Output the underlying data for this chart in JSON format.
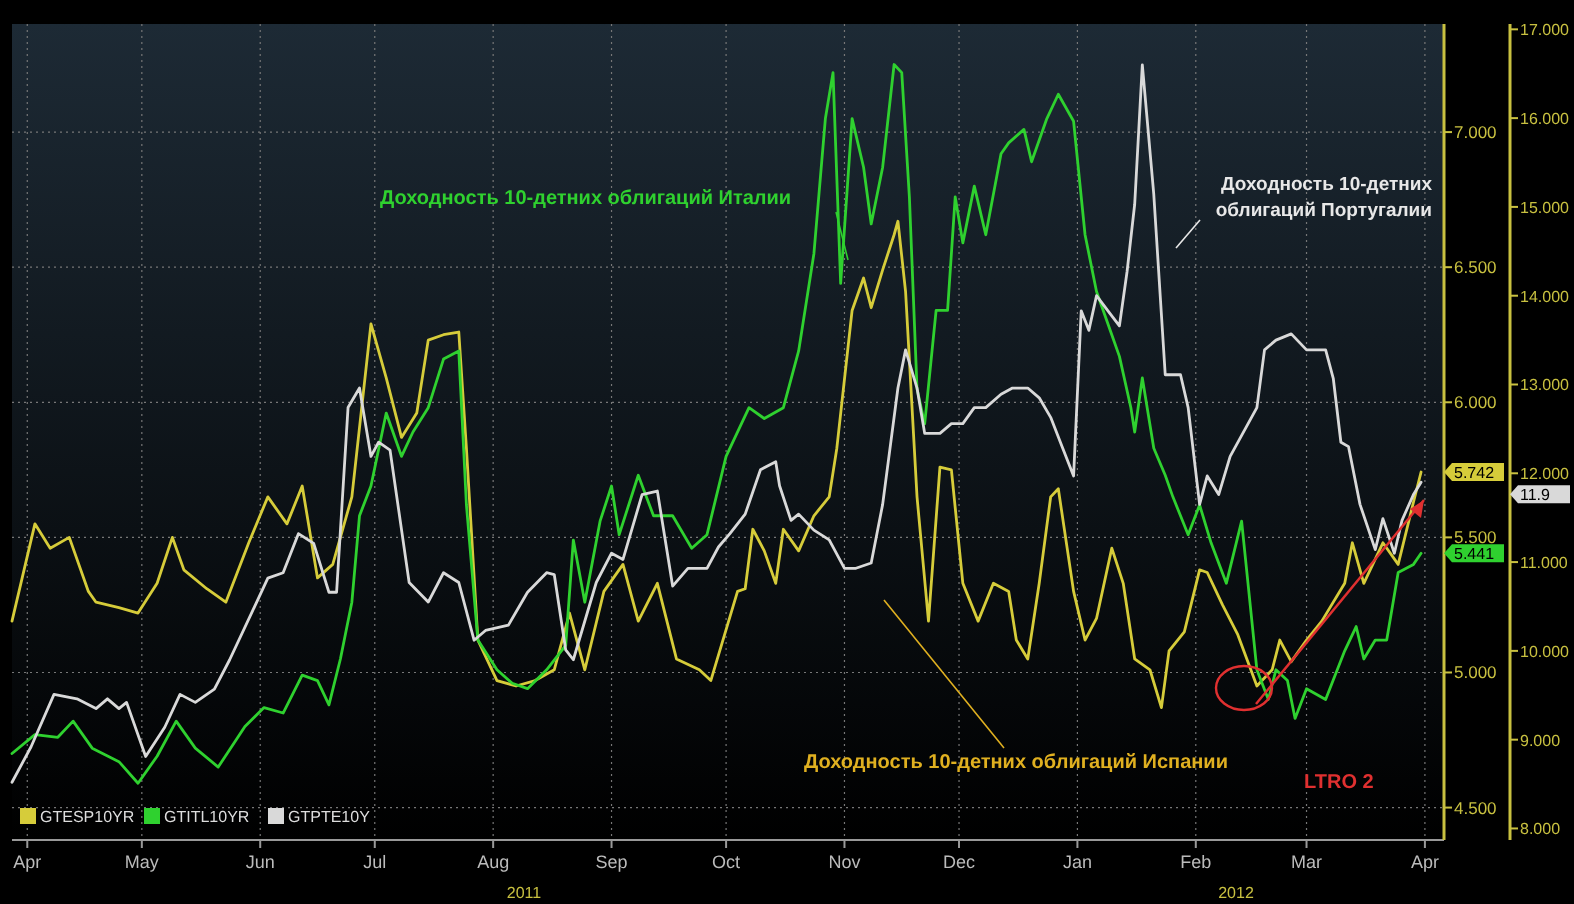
{
  "chart_data": {
    "type": "line",
    "xlim": [
      "2011-04-11",
      "2012-04-20"
    ],
    "xticks": [
      {
        "value": "2011-04-15",
        "label": "Apr"
      },
      {
        "value": "2011-05-15",
        "label": "May"
      },
      {
        "value": "2011-06-15",
        "label": "Jun"
      },
      {
        "value": "2011-07-15",
        "label": "Jul"
      },
      {
        "value": "2011-08-15",
        "label": "Aug"
      },
      {
        "value": "2011-09-15",
        "label": "Sep"
      },
      {
        "value": "2011-10-15",
        "label": "Oct"
      },
      {
        "value": "2011-11-15",
        "label": "Nov"
      },
      {
        "value": "2011-12-15",
        "label": "Dec"
      },
      {
        "value": "2012-01-15",
        "label": "Jan"
      },
      {
        "value": "2012-02-15",
        "label": "Feb"
      },
      {
        "value": "2012-03-15",
        "label": "Mar"
      },
      {
        "value": "2012-04-15",
        "label": "Apr"
      }
    ],
    "ylim": [
      4.38,
      7.4
    ],
    "yticks": [
      {
        "value": 4.5,
        "label": "4.500"
      },
      {
        "value": 5,
        "label": "5.000"
      },
      {
        "value": 5.5,
        "label": "5.500"
      },
      {
        "value": 6,
        "label": "6.000"
      },
      {
        "value": 6.5,
        "label": "6.500"
      },
      {
        "value": 7,
        "label": "7.000"
      }
    ],
    "y2lim": [
      7.87,
      17.06
    ],
    "y2ticks": [
      {
        "value": 8,
        "label": "8.000"
      },
      {
        "value": 9,
        "label": "9.000"
      },
      {
        "value": 10,
        "label": "10.000"
      },
      {
        "value": 11,
        "label": "11.000"
      },
      {
        "value": 12,
        "label": "12.000"
      },
      {
        "value": 13,
        "label": "13.000"
      },
      {
        "value": 14,
        "label": "14.000"
      },
      {
        "value": 15,
        "label": "15.000"
      },
      {
        "value": 16,
        "label": "16.000"
      },
      {
        "value": 17,
        "label": "17.000"
      }
    ],
    "grid": true,
    "legend": "bottom left",
    "line_style": "solid",
    "series": [
      {
        "name": "GTESP10YR",
        "color": "#d6cc3a",
        "x": [
          "2011-04-11",
          "2011-04-17",
          "2011-04-21",
          "2011-04-26",
          "2011-05-01",
          "2011-05-03",
          "2011-05-09",
          "2011-05-14",
          "2011-05-19",
          "2011-05-23",
          "2011-05-26",
          "2011-06-01",
          "2011-06-06",
          "2011-06-12",
          "2011-06-17",
          "2011-06-22",
          "2011-06-26",
          "2011-06-30",
          "2011-07-04",
          "2011-07-09",
          "2011-07-14",
          "2011-07-18",
          "2011-07-22",
          "2011-07-26",
          "2011-07-29",
          "2011-08-02",
          "2011-08-06",
          "2011-08-08",
          "2011-08-11",
          "2011-08-16",
          "2011-08-21",
          "2011-08-26",
          "2011-08-31",
          "2011-09-04",
          "2011-09-08",
          "2011-09-13",
          "2011-09-18",
          "2011-09-22",
          "2011-09-27",
          "2011-10-02",
          "2011-10-08",
          "2011-10-11",
          "2011-10-18",
          "2011-10-20",
          "2011-10-22",
          "2011-10-25",
          "2011-10-28",
          "2011-10-30",
          "2011-11-03",
          "2011-11-07",
          "2011-11-11",
          "2011-11-13",
          "2011-11-17",
          "2011-11-20",
          "2011-11-22",
          "2011-11-25",
          "2011-11-28",
          "2011-11-29",
          "2011-12-01",
          "2011-12-04",
          "2011-12-07",
          "2011-12-10",
          "2011-12-13",
          "2011-12-16",
          "2011-12-20",
          "2011-12-24",
          "2011-12-28",
          "2011-12-30",
          "2012-01-02",
          "2012-01-05",
          "2012-01-08",
          "2012-01-10",
          "2012-01-14",
          "2012-01-17",
          "2012-01-20",
          "2012-01-24",
          "2012-01-27",
          "2012-01-30",
          "2012-02-03",
          "2012-02-06",
          "2012-02-08",
          "2012-02-12",
          "2012-02-16",
          "2012-02-18",
          "2012-02-22",
          "2012-02-26",
          "2012-03-02",
          "2012-03-06",
          "2012-03-08",
          "2012-03-11",
          "2012-03-15",
          "2012-03-19",
          "2012-03-25",
          "2012-03-27",
          "2012-03-30",
          "2012-04-04",
          "2012-04-08",
          "2012-04-12",
          "2012-04-14"
        ],
        "values": [
          5.19,
          5.55,
          5.46,
          5.5,
          5.3,
          5.26,
          5.24,
          5.22,
          5.33,
          5.5,
          5.38,
          5.31,
          5.26,
          5.48,
          5.65,
          5.55,
          5.69,
          5.35,
          5.4,
          5.65,
          6.29,
          6.09,
          5.87,
          5.96,
          6.23,
          6.25,
          6.26,
          5.83,
          5.12,
          4.97,
          4.95,
          4.97,
          5.01,
          5.22,
          5.01,
          5.3,
          5.4,
          5.19,
          5.33,
          5.05,
          5.01,
          4.97,
          5.3,
          5.31,
          5.53,
          5.45,
          5.33,
          5.53,
          5.45,
          5.58,
          5.65,
          5.83,
          6.34,
          6.46,
          6.35,
          6.49,
          6.62,
          6.67,
          6.41,
          5.65,
          5.19,
          5.76,
          5.75,
          5.33,
          5.19,
          5.33,
          5.3,
          5.12,
          5.05,
          5.33,
          5.65,
          5.68,
          5.3,
          5.12,
          5.2,
          5.46,
          5.33,
          5.05,
          5.01,
          4.87,
          5.08,
          5.15,
          5.38,
          5.37,
          5.25,
          5.14,
          4.95,
          5.01,
          5.12,
          5.04,
          5.12,
          5.19,
          5.33,
          5.48,
          5.33,
          5.48,
          5.4,
          5.63,
          5.742
        ]
      },
      {
        "name": "GTITL10YR",
        "color": "#2fd12f",
        "x": [
          "2011-04-11",
          "2011-04-17",
          "2011-04-23",
          "2011-04-27",
          "2011-05-02",
          "2011-05-09",
          "2011-05-14",
          "2011-05-19",
          "2011-05-24",
          "2011-05-29",
          "2011-06-04",
          "2011-06-11",
          "2011-06-16",
          "2011-06-21",
          "2011-06-26",
          "2011-06-30",
          "2011-07-03",
          "2011-07-06",
          "2011-07-09",
          "2011-07-11",
          "2011-07-14",
          "2011-07-18",
          "2011-07-22",
          "2011-07-25",
          "2011-07-29",
          "2011-08-02",
          "2011-08-06",
          "2011-08-08",
          "2011-08-11",
          "2011-08-16",
          "2011-08-20",
          "2011-08-24",
          "2011-08-29",
          "2011-09-03",
          "2011-09-05",
          "2011-09-08",
          "2011-09-12",
          "2011-09-15",
          "2011-09-17",
          "2011-09-22",
          "2011-09-26",
          "2011-10-01",
          "2011-10-06",
          "2011-10-10",
          "2011-10-15",
          "2011-10-21",
          "2011-10-25",
          "2011-10-30",
          "2011-11-03",
          "2011-11-07",
          "2011-11-10",
          "2011-11-12",
          "2011-11-14",
          "2011-11-17",
          "2011-11-20",
          "2011-11-22",
          "2011-11-25",
          "2011-11-28",
          "2011-11-30",
          "2011-12-02",
          "2011-12-04",
          "2011-12-06",
          "2011-12-09",
          "2011-12-12",
          "2011-12-14",
          "2011-12-16",
          "2011-12-19",
          "2011-12-22",
          "2011-12-26",
          "2011-12-28",
          "2012-01-01",
          "2012-01-03",
          "2012-01-07",
          "2012-01-10",
          "2012-01-14",
          "2012-01-17",
          "2012-01-20",
          "2012-01-24",
          "2012-01-26",
          "2012-01-29",
          "2012-01-30",
          "2012-02-01",
          "2012-02-04",
          "2012-02-07",
          "2012-02-09",
          "2012-02-13",
          "2012-02-16",
          "2012-02-19",
          "2012-02-23",
          "2012-02-27",
          "2012-03-02",
          "2012-03-05",
          "2012-03-07",
          "2012-03-10",
          "2012-03-12",
          "2012-03-15",
          "2012-03-20",
          "2012-03-25",
          "2012-03-28",
          "2012-03-30",
          "2012-04-02",
          "2012-04-05",
          "2012-04-08",
          "2012-04-12",
          "2012-04-14"
        ],
        "values": [
          4.7,
          4.77,
          4.76,
          4.82,
          4.72,
          4.67,
          4.59,
          4.69,
          4.82,
          4.72,
          4.65,
          4.8,
          4.87,
          4.85,
          4.99,
          4.97,
          4.88,
          5.05,
          5.26,
          5.58,
          5.69,
          5.96,
          5.8,
          5.89,
          5.98,
          6.16,
          6.19,
          5.62,
          5.12,
          5.01,
          4.96,
          4.94,
          5.01,
          5.1,
          5.49,
          5.26,
          5.56,
          5.69,
          5.51,
          5.73,
          5.58,
          5.58,
          5.46,
          5.51,
          5.8,
          5.98,
          5.94,
          5.98,
          6.19,
          6.55,
          7.05,
          7.22,
          6.44,
          7.05,
          6.87,
          6.66,
          6.87,
          7.25,
          7.22,
          6.76,
          6.05,
          5.92,
          6.34,
          6.34,
          6.76,
          6.59,
          6.8,
          6.62,
          6.92,
          6.96,
          7.01,
          6.89,
          7.05,
          7.14,
          7.04,
          6.62,
          6.41,
          6.25,
          6.17,
          5.98,
          5.89,
          6.09,
          5.83,
          5.73,
          5.65,
          5.51,
          5.62,
          5.48,
          5.33,
          5.56,
          5.01,
          4.9,
          5.01,
          4.97,
          4.83,
          4.94,
          4.9,
          5.08,
          5.17,
          5.05,
          5.12,
          5.12,
          5.37,
          5.4,
          5.441
        ]
      },
      {
        "name": "GTPTE10Y",
        "color": "#d9d9d9",
        "axis": "y2",
        "x": [
          "2011-04-11",
          "2011-04-16",
          "2011-04-22",
          "2011-04-28",
          "2011-05-03",
          "2011-05-06",
          "2011-05-09",
          "2011-05-11",
          "2011-05-16",
          "2011-05-21",
          "2011-05-25",
          "2011-05-29",
          "2011-06-03",
          "2011-06-07",
          "2011-06-13",
          "2011-06-17",
          "2011-06-21",
          "2011-06-25",
          "2011-06-29",
          "2011-07-03",
          "2011-07-05",
          "2011-07-08",
          "2011-07-11",
          "2011-07-14",
          "2011-07-16",
          "2011-07-19",
          "2011-07-24",
          "2011-07-29",
          "2011-08-02",
          "2011-08-06",
          "2011-08-10",
          "2011-08-13",
          "2011-08-19",
          "2011-08-24",
          "2011-08-29",
          "2011-08-31",
          "2011-09-03",
          "2011-09-05",
          "2011-09-11",
          "2011-09-15",
          "2011-09-18",
          "2011-09-23",
          "2011-09-27",
          "2011-10-01",
          "2011-10-05",
          "2011-10-10",
          "2011-10-13",
          "2011-10-16",
          "2011-10-20",
          "2011-10-24",
          "2011-10-28",
          "2011-10-29",
          "2011-11-01",
          "2011-11-03",
          "2011-11-07",
          "2011-11-11",
          "2011-11-15",
          "2011-11-18",
          "2011-11-22",
          "2011-11-25",
          "2011-11-29",
          "2011-12-01",
          "2011-12-04",
          "2011-12-06",
          "2011-12-10",
          "2011-12-13",
          "2011-12-16",
          "2011-12-19",
          "2011-12-22",
          "2011-12-26",
          "2011-12-29",
          "2012-01-02",
          "2012-01-05",
          "2012-01-08",
          "2012-01-11",
          "2012-01-14",
          "2012-01-16",
          "2012-01-18",
          "2012-01-20",
          "2012-01-23",
          "2012-01-26",
          "2012-01-28",
          "2012-01-30",
          "2012-02-01",
          "2012-02-04",
          "2012-02-07",
          "2012-02-11",
          "2012-02-13",
          "2012-02-16",
          "2012-02-18",
          "2012-02-21",
          "2012-02-24",
          "2012-03-02",
          "2012-03-04",
          "2012-03-07",
          "2012-03-11",
          "2012-03-15",
          "2012-03-20",
          "2012-03-22",
          "2012-03-24",
          "2012-03-26",
          "2012-03-29",
          "2012-04-02",
          "2012-04-04",
          "2012-04-07",
          "2012-04-09",
          "2012-04-12",
          "2012-04-14"
        ],
        "values": [
          8.52,
          8.92,
          9.51,
          9.46,
          9.35,
          9.46,
          9.35,
          9.42,
          8.81,
          9.14,
          9.51,
          9.42,
          9.57,
          9.9,
          10.45,
          10.82,
          10.88,
          11.32,
          11.21,
          10.66,
          10.66,
          12.74,
          12.96,
          12.19,
          12.35,
          12.26,
          10.77,
          10.55,
          10.88,
          10.77,
          10.12,
          10.23,
          10.29,
          10.66,
          10.88,
          10.86,
          10.01,
          9.9,
          10.77,
          11.1,
          11.03,
          11.76,
          11.8,
          10.73,
          10.93,
          10.93,
          11.17,
          11.32,
          11.54,
          12.04,
          12.13,
          11.86,
          11.47,
          11.54,
          11.36,
          11.25,
          10.93,
          10.93,
          10.99,
          11.65,
          12.96,
          13.39,
          12.96,
          12.45,
          12.45,
          12.56,
          12.56,
          12.74,
          12.74,
          12.89,
          12.96,
          12.96,
          12.85,
          12.63,
          12.3,
          11.97,
          13.83,
          13.61,
          14.0,
          13.83,
          13.66,
          14.27,
          15.03,
          16.6,
          15.14,
          13.11,
          13.11,
          12.74,
          11.65,
          11.97,
          11.76,
          12.19,
          12.74,
          13.39,
          13.5,
          13.57,
          13.39,
          13.39,
          13.07,
          12.35,
          12.3,
          11.65,
          11.14,
          11.49,
          11.1,
          11.47,
          11.76,
          11.9
        ]
      }
    ],
    "annotations": [
      "Доходность 10-детних облигаций Италии",
      "Доходность 10-детних облигаций Португалии",
      "Доходность 10-детних облигаций Испании",
      "LTRO 2",
      "2011",
      "2012",
      "5.742",
      "5.441",
      "11.9"
    ]
  }
}
